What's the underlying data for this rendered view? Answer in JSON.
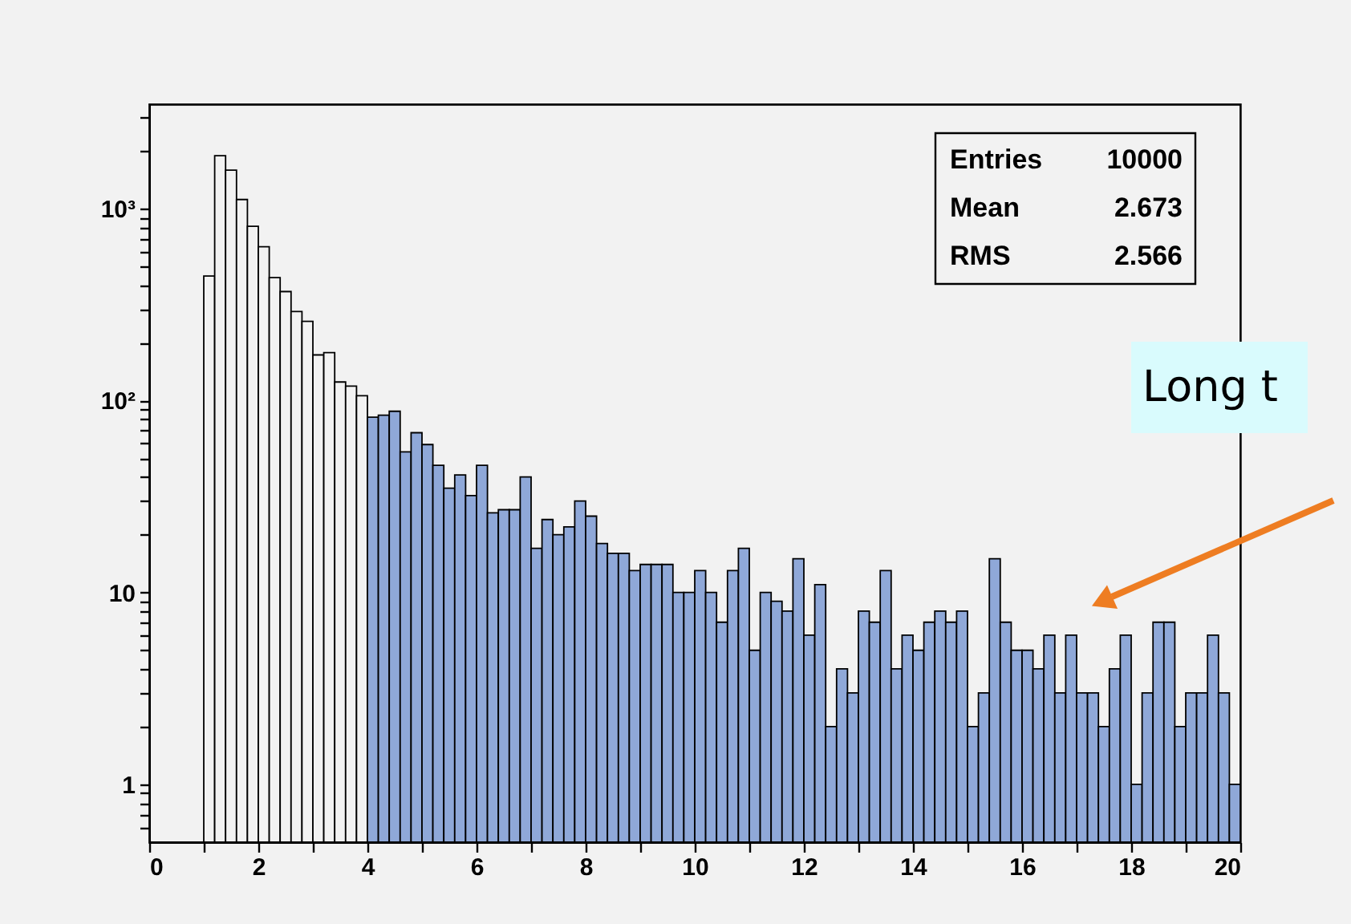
{
  "chart_data": {
    "type": "histogram",
    "bins": [
      0,
      0.2,
      0.4,
      0.6,
      0.8,
      1,
      1.2,
      1.4,
      1.6,
      1.8,
      2,
      2.2,
      2.4,
      2.6,
      2.8,
      3,
      3.2,
      3.4,
      3.6,
      3.8,
      4,
      4.2,
      4.4,
      4.6,
      4.8,
      5,
      5.2,
      5.4,
      5.6,
      5.8,
      6,
      6.2,
      6.4,
      6.6,
      6.8,
      7,
      7.2,
      7.4,
      7.6,
      7.8,
      8,
      8.2,
      8.4,
      8.6,
      8.8,
      9,
      9.2,
      9.4,
      9.6,
      9.8,
      10,
      10.2,
      10.4,
      10.6,
      10.8,
      11,
      11.2,
      11.4,
      11.6,
      11.8,
      12,
      12.2,
      12.4,
      12.6,
      12.8,
      13,
      13.2,
      13.4,
      13.6,
      13.8,
      14,
      14.2,
      14.4,
      14.6,
      14.8,
      15,
      15.2,
      15.4,
      15.6,
      15.8,
      16,
      16.2,
      16.4,
      16.6,
      16.8,
      17,
      17.2,
      17.4,
      17.6,
      17.8,
      18,
      18.2,
      18.4,
      18.6,
      18.8,
      19,
      19.2,
      19.4,
      19.6,
      19.8,
      20
    ],
    "values": [
      null,
      null,
      null,
      null,
      null,
      446,
      1888,
      1588,
      1116,
      809,
      634,
      437,
      370,
      291,
      259,
      173,
      178,
      125,
      119,
      106,
      82,
      84,
      88,
      54,
      68,
      59,
      46,
      35,
      41,
      32,
      46,
      26,
      27,
      27,
      40,
      17,
      24,
      20,
      22,
      30,
      25,
      18,
      16,
      16,
      13,
      14,
      14,
      14,
      10,
      10,
      13,
      10,
      7,
      13,
      17,
      5,
      10,
      9,
      8,
      15,
      6,
      11,
      2,
      4,
      3,
      8,
      7,
      13,
      4,
      6,
      5,
      7,
      8,
      7,
      8,
      2,
      3,
      15,
      7,
      5,
      5,
      4,
      6,
      3,
      6,
      3,
      3,
      2,
      4,
      6,
      1,
      3,
      7,
      7,
      2,
      3,
      3,
      6,
      3,
      1
    ],
    "colors": [
      "#f2f2f2",
      "#f2f2f2",
      "#f2f2f2",
      "#f2f2f2",
      "#f2f2f2",
      "#f2f2f2",
      "#f2f2f2",
      "#f2f2f2",
      "#f2f2f2",
      "#f2f2f2",
      "#f2f2f2",
      "#f2f2f2",
      "#f2f2f2",
      "#f2f2f2",
      "#f2f2f2",
      "#f2f2f2",
      "#f2f2f2",
      "#f2f2f2",
      "#f2f2f2",
      "#f2f2f2",
      "#8fa8d8",
      "#8fa8d8",
      "#8fa8d8",
      "#8fa8d8",
      "#8fa8d8",
      "#8fa8d8",
      "#8fa8d8",
      "#8fa8d8",
      "#8fa8d8",
      "#8fa8d8",
      "#8fa8d8",
      "#8fa8d8",
      "#8fa8d8",
      "#8fa8d8",
      "#8fa8d8",
      "#8fa8d8",
      "#8fa8d8",
      "#8fa8d8",
      "#8fa8d8",
      "#8fa8d8",
      "#8fa8d8",
      "#8fa8d8",
      "#8fa8d8",
      "#8fa8d8",
      "#8fa8d8",
      "#8fa8d8",
      "#8fa8d8",
      "#8fa8d8",
      "#8fa8d8",
      "#8fa8d8",
      "#8fa8d8",
      "#8fa8d8",
      "#8fa8d8",
      "#8fa8d8",
      "#8fa8d8",
      "#8fa8d8",
      "#8fa8d8",
      "#8fa8d8",
      "#8fa8d8",
      "#8fa8d8",
      "#8fa8d8",
      "#8fa8d8",
      "#8fa8d8",
      "#8fa8d8",
      "#8fa8d8",
      "#8fa8d8",
      "#8fa8d8",
      "#8fa8d8",
      "#8fa8d8",
      "#8fa8d8",
      "#8fa8d8",
      "#8fa8d8",
      "#8fa8d8",
      "#8fa8d8",
      "#8fa8d8",
      "#8fa8d8",
      "#8fa8d8",
      "#8fa8d8",
      "#8fa8d8",
      "#8fa8d8",
      "#8fa8d8",
      "#8fa8d8",
      "#8fa8d8",
      "#8fa8d8",
      "#8fa8d8",
      "#8fa8d8",
      "#8fa8d8",
      "#8fa8d8",
      "#8fa8d8",
      "#8fa8d8",
      "#8fa8d8",
      "#8fa8d8",
      "#8fa8d8",
      "#8fa8d8",
      "#8fa8d8",
      "#8fa8d8",
      "#8fa8d8",
      "#8fa8d8",
      "#8fa8d8",
      "#8fa8d8"
    ],
    "log": true,
    "xlim": [
      0,
      20
    ],
    "xticks": [
      0,
      {
        "value": 1,
        "label": null
      },
      2,
      {
        "value": 3,
        "label": null
      },
      4,
      {
        "value": 5,
        "label": null
      },
      6,
      {
        "value": 7,
        "label": null
      },
      8,
      {
        "value": 9,
        "label": null
      },
      10,
      {
        "value": 11,
        "label": null
      },
      12,
      {
        "value": 13,
        "label": null
      },
      14,
      {
        "value": 15,
        "label": null
      },
      16,
      {
        "value": 17,
        "label": null
      },
      18,
      {
        "value": 19,
        "label": null
      },
      20
    ],
    "ylim": [
      0.5,
      3500
    ],
    "yticks": [
      {
        "value": 0.6,
        "label": null
      },
      {
        "value": 0.7,
        "label": null
      },
      {
        "value": 0.8,
        "label": null
      },
      {
        "value": 0.9,
        "label": null
      },
      1,
      {
        "value": 2,
        "label": null
      },
      {
        "value": 3,
        "label": null
      },
      {
        "value": 4,
        "label": null
      },
      {
        "value": 5,
        "label": null
      },
      {
        "value": 6,
        "label": null
      },
      {
        "value": 7,
        "label": null
      },
      {
        "value": 8,
        "label": null
      },
      {
        "value": 9,
        "label": null
      },
      10,
      {
        "value": 20,
        "label": null
      },
      {
        "value": 30,
        "label": null
      },
      {
        "value": 40,
        "label": null
      },
      {
        "value": 50,
        "label": null
      },
      {
        "value": 60,
        "label": null
      },
      {
        "value": 70,
        "label": null
      },
      {
        "value": 80,
        "label": null
      },
      {
        "value": 90,
        "label": null
      },
      {
        "value": 100,
        "label": "10²"
      },
      {
        "value": 200,
        "label": null
      },
      {
        "value": 300,
        "label": null
      },
      {
        "value": 400,
        "label": null
      },
      {
        "value": 500,
        "label": null
      },
      {
        "value": 600,
        "label": null
      },
      {
        "value": 700,
        "label": null
      },
      {
        "value": 800,
        "label": null
      },
      {
        "value": 900,
        "label": null
      },
      {
        "value": 1000,
        "label": "10³"
      },
      {
        "value": 2000,
        "label": null
      },
      {
        "value": 3000,
        "label": null
      }
    ],
    "grid": false,
    "annotations": [
      "Entries 10000",
      "Mean 2.673",
      "RMS 2.566",
      "Long t"
    ]
  }
}
